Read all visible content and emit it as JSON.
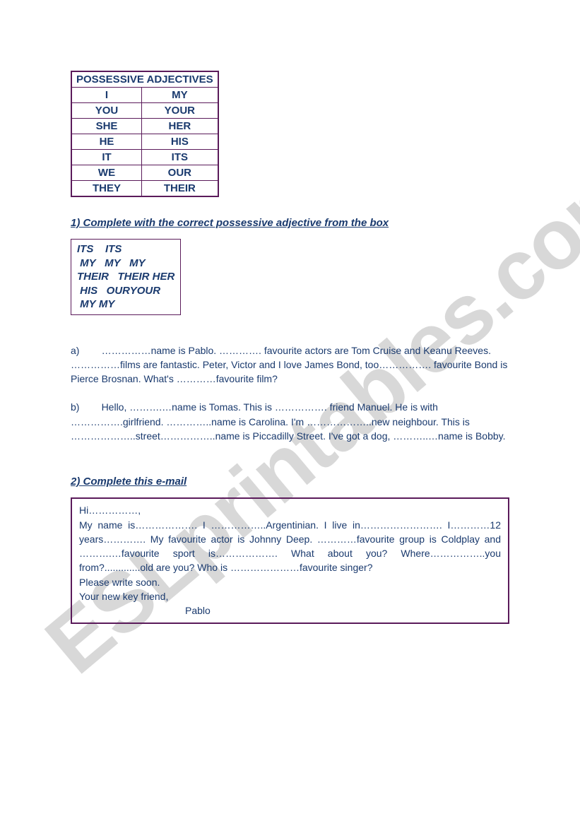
{
  "table": {
    "header": "POSSESSIVE ADJECTIVES",
    "rows": [
      {
        "pronoun": "I",
        "adj": "MY"
      },
      {
        "pronoun": "YOU",
        "adj": "YOUR"
      },
      {
        "pronoun": "SHE",
        "adj": "HER"
      },
      {
        "pronoun": "HE",
        "adj": "HIS"
      },
      {
        "pronoun": "IT",
        "adj": "ITS"
      },
      {
        "pronoun": "WE",
        "adj": "OUR"
      },
      {
        "pronoun": "THEY",
        "adj": "THEIR"
      }
    ]
  },
  "ex1": {
    "instruction": "1) Complete with the correct possessive adjective from the box",
    "box_lines": [
      "ITS    ITS",
      " MY   MY   MY",
      "THEIR   THEIR HER",
      " HIS   OURYOUR",
      " MY MY"
    ],
    "item_a": "a)        ……………name is Pablo. …………. favourite actors are Tom Cruise and Keanu Reeves. ……………films are fantastic. Peter, Victor and I love James Bond, too……………. favourite Bond is Pierce Brosnan. What's …………favourite film?",
    "item_b": "b)        Hello, ……….…name is Tomas. This is ……………. friend Manuel. He is with …………….girlfriend. …………..name is Carolina. I'm ………………..new neighbour. This is ………………..street……………..name is Piccadilly Street. I've got a dog, ………..…name is Bobby."
  },
  "ex2": {
    "instruction": "2) Complete this e-mail",
    "line1": "Hi……………,",
    "body": "My name is………………. I ……………..Argentinian. I live in……………………. I…………12 years…………. My favourite actor is Johnny Deep. …………favourite group is Coldplay and ……….…favourite sport is………………. What about you? Where……………..you from?.............old are you? Who is …………………favourite singer?",
    "line3": "Please write soon.",
    "line4": "Your new key friend,",
    "signature": "Pablo"
  },
  "watermark": "ESLprintables.com",
  "colors": {
    "text": "#1a3a6e",
    "border": "#5a1a5a",
    "watermark": "#d8d8d8",
    "background": "#ffffff"
  }
}
